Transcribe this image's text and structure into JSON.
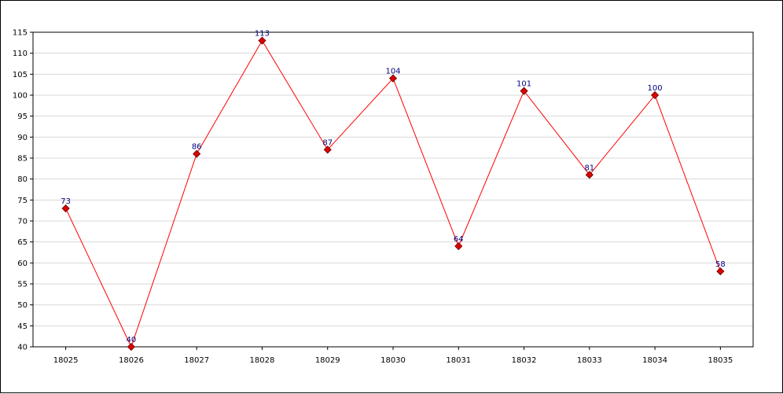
{
  "chart_data": {
    "type": "line",
    "title": "",
    "xlabel": "",
    "ylabel": "",
    "categories": [
      "18025",
      "18026",
      "18027",
      "18028",
      "18029",
      "18030",
      "18031",
      "18032",
      "18033",
      "18034",
      "18035"
    ],
    "series": [
      {
        "values": [
          73,
          40,
          86,
          113,
          87,
          104,
          64,
          101,
          81,
          100,
          58
        ],
        "line_color": "#ff0000",
        "marker_color": "#dd0000",
        "label_color": "#000080"
      }
    ],
    "ylim": [
      40,
      115
    ],
    "yticks": [
      40,
      45,
      50,
      55,
      60,
      65,
      70,
      75,
      80,
      85,
      90,
      95,
      100,
      105,
      110,
      115
    ],
    "grid": true,
    "grid_color": "#d8d8d8",
    "data_labels": true,
    "legend": "none"
  }
}
